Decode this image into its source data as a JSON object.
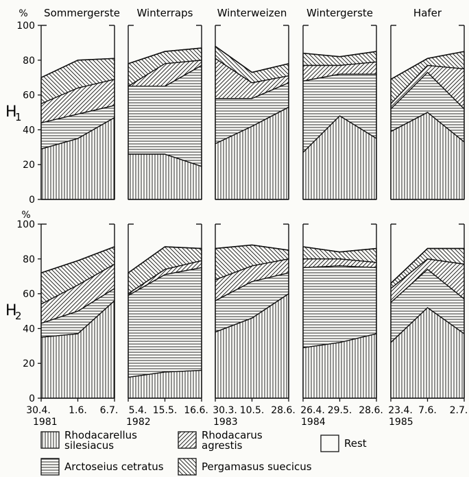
{
  "chart_data": {
    "type": "area",
    "stacked": true,
    "unit_label": "%",
    "ylim": [
      0,
      100
    ],
    "yticks": [
      0,
      20,
      40,
      60,
      80,
      100
    ],
    "row_labels": [
      "H1",
      "H2"
    ],
    "crops": [
      {
        "title": "Sommergerste",
        "dates": [
          "30.4.",
          "1.6.",
          "6.7."
        ],
        "year": "1981"
      },
      {
        "title": "Winterraps",
        "dates": [
          "5.4.",
          "15.5.",
          "16.6."
        ],
        "year": "1982"
      },
      {
        "title": "Winterweizen",
        "dates": [
          "30.3.",
          "10.5.",
          "28.6."
        ],
        "year": "1983"
      },
      {
        "title": "Wintergerste",
        "dates": [
          "26.4.",
          "29.5.",
          "28.6."
        ],
        "year": "1984"
      },
      {
        "title": "Hafer",
        "dates": [
          "23.4.",
          "7.6.",
          "2.7."
        ],
        "year": "1985"
      }
    ],
    "series_order": [
      "Rhodacarellus silesiacus",
      "Arctoseius cetratus",
      "Rhodacarus agrestis",
      "Pergamasus suecicus",
      "Rest"
    ],
    "cumulative_boundaries": {
      "H1": [
        [
          [
            29,
            35,
            47
          ],
          [
            44,
            49,
            54
          ],
          [
            55,
            64,
            69
          ],
          [
            70,
            80,
            81
          ]
        ],
        [
          [
            26,
            26,
            19
          ],
          [
            65,
            65,
            77
          ],
          [
            65,
            78,
            80
          ],
          [
            78,
            85,
            87
          ]
        ],
        [
          [
            32,
            42,
            53
          ],
          [
            58,
            58,
            67
          ],
          [
            81,
            67,
            71
          ],
          [
            88,
            73,
            78
          ]
        ],
        [
          [
            27,
            48,
            35
          ],
          [
            68,
            72,
            72
          ],
          [
            77,
            77,
            79
          ],
          [
            84,
            82,
            85
          ]
        ],
        [
          [
            39,
            50,
            33
          ],
          [
            52,
            73,
            52
          ],
          [
            55,
            77,
            75
          ],
          [
            69,
            81,
            85
          ]
        ]
      ],
      "H2": [
        [
          [
            35,
            37,
            56
          ],
          [
            43,
            50,
            63
          ],
          [
            54,
            65,
            77
          ],
          [
            72,
            79,
            87
          ]
        ],
        [
          [
            12,
            15,
            16
          ],
          [
            59,
            71,
            75
          ],
          [
            60,
            74,
            79
          ],
          [
            72,
            87,
            86
          ]
        ],
        [
          [
            38,
            46,
            60
          ],
          [
            56,
            67,
            72
          ],
          [
            68,
            76,
            80
          ],
          [
            86,
            88,
            85
          ]
        ],
        [
          [
            29,
            32,
            37
          ],
          [
            75,
            76,
            75
          ],
          [
            80,
            80,
            78
          ],
          [
            87,
            84,
            86
          ]
        ],
        [
          [
            32,
            52,
            37
          ],
          [
            55,
            74,
            57
          ],
          [
            63,
            80,
            77
          ],
          [
            66,
            86,
            86
          ]
        ]
      ]
    },
    "legend": [
      {
        "line1": "Rhodacarellus",
        "line2": "silesiacus",
        "pattern": "vertical"
      },
      {
        "line1": "Rhodacarus",
        "line2": "agrestis",
        "pattern": "diag-right"
      },
      {
        "line1": "Rest",
        "line2": "",
        "pattern": "none"
      },
      {
        "line1": "Arctoseius cetratus",
        "line2": "",
        "pattern": "horizontal"
      },
      {
        "line1": "Pergamasus suecicus",
        "line2": "",
        "pattern": "diag-left"
      }
    ]
  }
}
